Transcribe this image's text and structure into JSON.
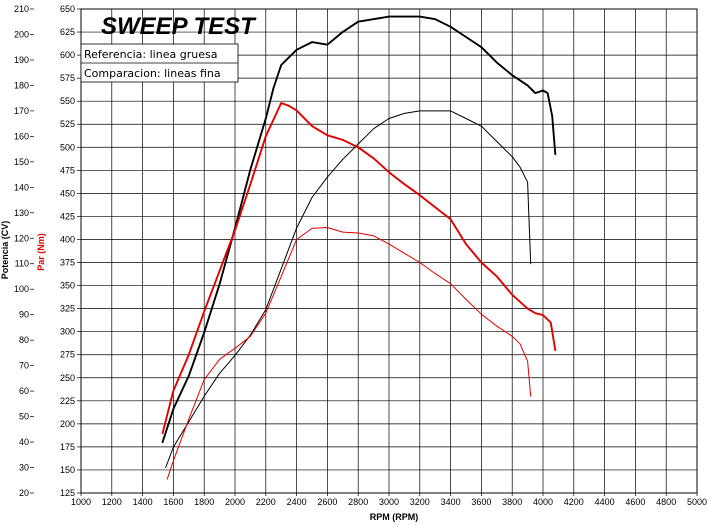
{
  "chart_data": {
    "type": "line",
    "title": "SWEEP TEST",
    "legend": [
      "Referencia: linea gruesa",
      "Comparacion: lineas fina"
    ],
    "legend_position": "top-left",
    "grid": true,
    "xlabel": "RPM (RPM)",
    "ylabel_power": "Potencia (CV)",
    "ylabel_torque": "Par (Nm)",
    "xlim": [
      1000,
      5000
    ],
    "power_lim": [
      20,
      210
    ],
    "torque_lim": [
      125,
      650
    ],
    "x_ticks": [
      "1000",
      "1200",
      "1400",
      "1600",
      "1800",
      "2000",
      "2200",
      "2400",
      "2600",
      "2800",
      "3000",
      "3200",
      "3400",
      "3600",
      "3800",
      "4000",
      "4200",
      "4400",
      "4600",
      "4800",
      "5000"
    ],
    "power_ticks": [
      "20",
      "30",
      "40",
      "50",
      "60",
      "70",
      "80",
      "90",
      "100",
      "110",
      "120",
      "130",
      "140",
      "150",
      "160",
      "170",
      "180",
      "190",
      "200",
      "210"
    ],
    "torque_ticks": [
      "125",
      "150",
      "175",
      "200",
      "225",
      "250",
      "275",
      "300",
      "325",
      "350",
      "375",
      "400",
      "425",
      "450",
      "475",
      "500",
      "525",
      "550",
      "575",
      "600",
      "625",
      "650"
    ],
    "colors": {
      "potencia": "#000000",
      "par": "#e00000"
    },
    "series": [
      {
        "axis": "potencia",
        "width": 1.9,
        "color": "#000000",
        "points": [
          [
            1530,
            40
          ],
          [
            1600,
            53
          ],
          [
            1700,
            66
          ],
          [
            1800,
            83
          ],
          [
            1900,
            102
          ],
          [
            2000,
            124
          ],
          [
            2100,
            147
          ],
          [
            2200,
            167
          ],
          [
            2250,
            179
          ],
          [
            2300,
            188
          ],
          [
            2400,
            194
          ],
          [
            2500,
            197
          ],
          [
            2600,
            196
          ],
          [
            2700,
            201
          ],
          [
            2800,
            205
          ],
          [
            3000,
            207
          ],
          [
            3200,
            207
          ],
          [
            3300,
            206
          ],
          [
            3400,
            203
          ],
          [
            3500,
            199
          ],
          [
            3600,
            195
          ],
          [
            3700,
            189
          ],
          [
            3800,
            184
          ],
          [
            3900,
            180
          ],
          [
            3950,
            177
          ],
          [
            4000,
            178
          ],
          [
            4030,
            177
          ],
          [
            4060,
            168
          ],
          [
            4080,
            153
          ]
        ]
      },
      {
        "axis": "potencia",
        "width": 1.0,
        "color": "#000000",
        "points": [
          [
            1550,
            30
          ],
          [
            1600,
            38
          ],
          [
            1700,
            48
          ],
          [
            1800,
            58
          ],
          [
            1900,
            67
          ],
          [
            2000,
            74
          ],
          [
            2100,
            82
          ],
          [
            2200,
            92
          ],
          [
            2300,
            108
          ],
          [
            2400,
            124
          ],
          [
            2500,
            136
          ],
          [
            2600,
            144
          ],
          [
            2700,
            151
          ],
          [
            2800,
            157
          ],
          [
            2900,
            163
          ],
          [
            3000,
            167
          ],
          [
            3100,
            169
          ],
          [
            3200,
            170
          ],
          [
            3300,
            170
          ],
          [
            3400,
            170
          ],
          [
            3500,
            167
          ],
          [
            3600,
            164
          ],
          [
            3700,
            158
          ],
          [
            3800,
            152
          ],
          [
            3850,
            148
          ],
          [
            3900,
            142
          ],
          [
            3920,
            110
          ]
        ]
      },
      {
        "axis": "par",
        "width": 1.9,
        "color": "#e00000",
        "points": [
          [
            1530,
            190
          ],
          [
            1600,
            236
          ],
          [
            1700,
            275
          ],
          [
            1800,
            322
          ],
          [
            1900,
            366
          ],
          [
            2000,
            410
          ],
          [
            2100,
            460
          ],
          [
            2200,
            512
          ],
          [
            2250,
            530
          ],
          [
            2300,
            548
          ],
          [
            2350,
            545
          ],
          [
            2400,
            540
          ],
          [
            2500,
            523
          ],
          [
            2600,
            513
          ],
          [
            2700,
            508
          ],
          [
            2800,
            500
          ],
          [
            2900,
            488
          ],
          [
            3000,
            473
          ],
          [
            3100,
            460
          ],
          [
            3200,
            448
          ],
          [
            3300,
            435
          ],
          [
            3400,
            422
          ],
          [
            3500,
            395
          ],
          [
            3600,
            375
          ],
          [
            3700,
            360
          ],
          [
            3800,
            340
          ],
          [
            3900,
            325
          ],
          [
            3950,
            320
          ],
          [
            4000,
            318
          ],
          [
            4050,
            310
          ],
          [
            4080,
            280
          ]
        ]
      },
      {
        "axis": "par",
        "width": 1.0,
        "color": "#e00000",
        "points": [
          [
            1560,
            140
          ],
          [
            1600,
            160
          ],
          [
            1700,
            205
          ],
          [
            1800,
            248
          ],
          [
            1900,
            270
          ],
          [
            2000,
            282
          ],
          [
            2100,
            295
          ],
          [
            2200,
            320
          ],
          [
            2300,
            360
          ],
          [
            2400,
            400
          ],
          [
            2500,
            412
          ],
          [
            2600,
            413
          ],
          [
            2700,
            408
          ],
          [
            2800,
            407
          ],
          [
            2900,
            404
          ],
          [
            3000,
            395
          ],
          [
            3100,
            385
          ],
          [
            3200,
            375
          ],
          [
            3300,
            363
          ],
          [
            3400,
            352
          ],
          [
            3500,
            335
          ],
          [
            3600,
            319
          ],
          [
            3700,
            306
          ],
          [
            3800,
            295
          ],
          [
            3850,
            287
          ],
          [
            3900,
            268
          ],
          [
            3920,
            230
          ]
        ]
      }
    ]
  }
}
